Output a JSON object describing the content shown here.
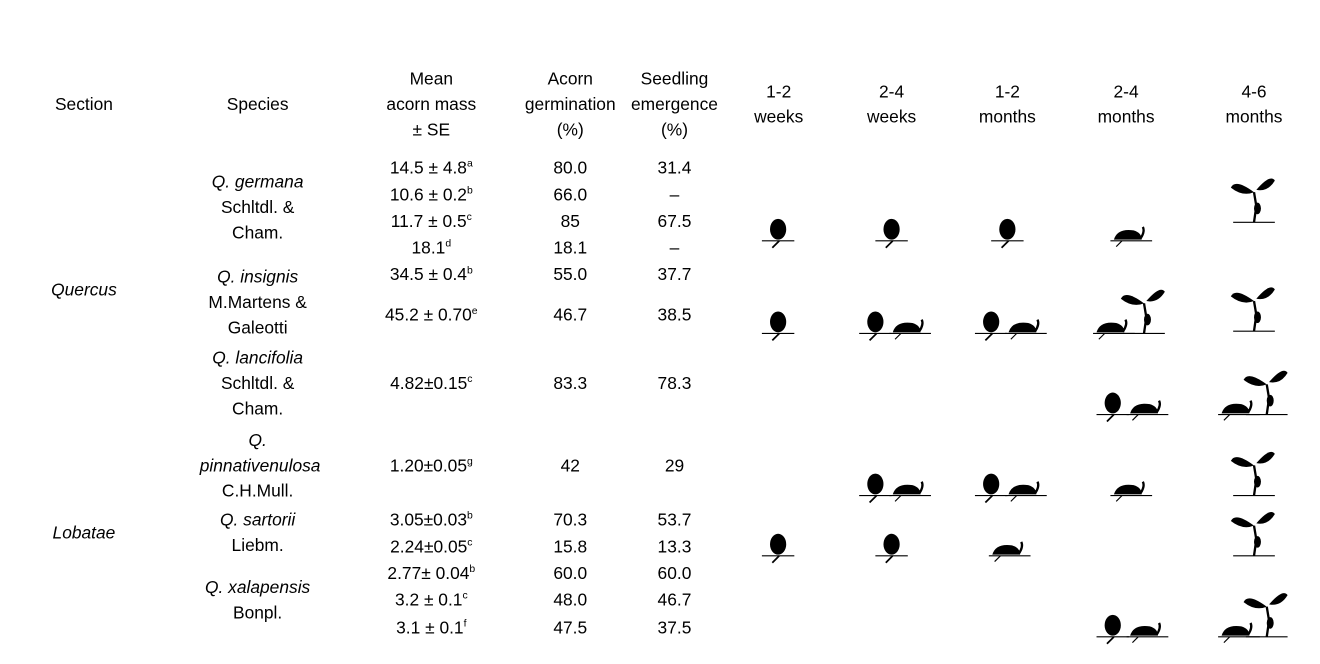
{
  "table": {
    "columns": [
      [
        "Section"
      ],
      [
        "Species"
      ],
      [
        "Mean",
        "acorn mass",
        "± SE"
      ],
      [
        "Acorn",
        "germination",
        "(%)"
      ],
      [
        "Seedling",
        "emergence",
        "(%)"
      ],
      [
        "1-2",
        "weeks"
      ],
      [
        "2-4",
        "weeks"
      ],
      [
        "1-2",
        "months"
      ],
      [
        "2-4",
        "months"
      ],
      [
        "4-6",
        "months"
      ]
    ],
    "sections": [
      {
        "name": "Quercus",
        "species": [
          {
            "name": "Q. germana",
            "authority": "Schltdl. & Cham.",
            "records": [
              {
                "mass": "14.5 ± 4.8",
                "note": "a",
                "germination": "80.0",
                "emergence": "31.4"
              },
              {
                "mass": "10.6 ± 0.2",
                "note": "b",
                "germination": "66.0",
                "emergence": "–"
              },
              {
                "mass": "11.7 ± 0.5",
                "note": "c",
                "germination": "85",
                "emergence": "67.5"
              },
              {
                "mass": "18.1",
                "note": "d",
                "germination": "18.1",
                "emergence": "–"
              }
            ]
          },
          {
            "name": "Q. insignis",
            "authority": "M.Martens & Galeotti",
            "records": [
              {
                "mass": "34.5 ± 0.4",
                "note": "b",
                "germination": "55.0",
                "emergence": "37.7"
              },
              {
                "mass": "45.2 ± 0.70",
                "note": "e",
                "germination": "46.7",
                "emergence": "38.5"
              }
            ]
          },
          {
            "name": "Q. lancifolia",
            "authority": "Schltdl. & Cham.",
            "records": [
              {
                "mass": "4.82±0.15",
                "note": "c",
                "germination": "83.3",
                "emergence": "78.3"
              }
            ]
          }
        ]
      },
      {
        "name": "Lobatae",
        "species": [
          {
            "name": "Q. pinnativenulosa",
            "authority": "C.H.Mull.",
            "records": [
              {
                "mass": "1.20±0.05",
                "note": "g",
                "germination": "42",
                "emergence": "29"
              }
            ]
          },
          {
            "name": "Q. sartorii",
            "authority": "Liebm.",
            "records": [
              {
                "mass": "3.05±0.03",
                "note": "b",
                "germination": "70.3",
                "emergence": "53.7"
              },
              {
                "mass": "2.24±0.05",
                "note": "c",
                "germination": "15.8",
                "emergence": "13.3"
              }
            ]
          },
          {
            "name": "Q. xalapensis",
            "authority": "Bonpl.",
            "records": [
              {
                "mass": "2.77± 0.04",
                "note": "b",
                "germination": "60.0",
                "emergence": "60.0"
              },
              {
                "mass": "3.2 ± 0.1",
                "note": "c",
                "germination": "48.0",
                "emergence": "46.7"
              },
              {
                "mass": "3.1 ± 0.1",
                "note": "f",
                "germination": "47.5",
                "emergence": "37.5"
              }
            ]
          }
        ]
      }
    ]
  }
}
